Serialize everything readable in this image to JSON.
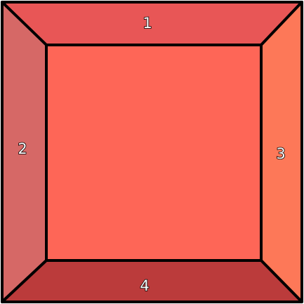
{
  "diagram": {
    "panels": {
      "top": {
        "label": "1",
        "color": "#e85656"
      },
      "left": {
        "label": "2",
        "color": "#d66866"
      },
      "right": {
        "label": "3",
        "color": "#fd7858"
      },
      "bottom": {
        "label": "4",
        "color": "#bb3b3b"
      },
      "center": {
        "label": "",
        "color": "#fe6657"
      }
    },
    "outline_color": "#000000"
  }
}
